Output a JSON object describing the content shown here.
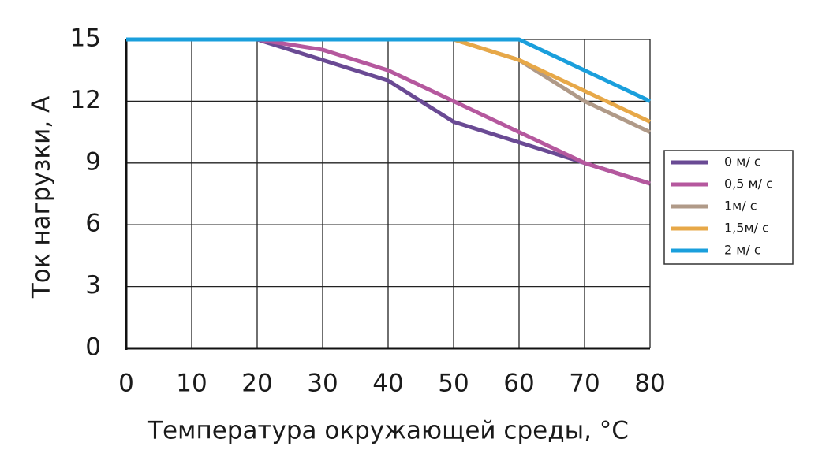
{
  "chart_data": {
    "type": "line",
    "x_label": "Температура окружающей среды, °С",
    "y_label": "Ток нагрузки, А",
    "x": [
      0,
      10,
      20,
      30,
      40,
      50,
      60,
      70,
      80
    ],
    "xlim": [
      0,
      80
    ],
    "xticks": [
      0,
      10,
      20,
      30,
      40,
      50,
      60,
      70,
      80
    ],
    "ylim": [
      0,
      15
    ],
    "yticks": [
      0,
      3,
      6,
      9,
      12,
      15
    ],
    "grid": true,
    "legend": "right",
    "series": [
      {
        "name": "0 м/ с",
        "color": "#6a4a94",
        "values": [
          15,
          15,
          15,
          14,
          13,
          11,
          10,
          9,
          8
        ]
      },
      {
        "name": "0,5 м/ с",
        "color": "#b5589e",
        "values": [
          15,
          15,
          15,
          14.5,
          13.5,
          12,
          10.5,
          9,
          8
        ]
      },
      {
        "name": "1м/ с",
        "color": "#b09a88",
        "values": [
          15,
          15,
          15,
          15,
          15,
          15,
          14,
          12,
          10.5
        ]
      },
      {
        "name": "1,5м/ с",
        "color": "#e7a848",
        "values": [
          15,
          15,
          15,
          15,
          15,
          15,
          14,
          12.5,
          11
        ]
      },
      {
        "name": "2 м/ с",
        "color": "#1a9fdc",
        "values": [
          15,
          15,
          15,
          15,
          15,
          15,
          15,
          13.5,
          12
        ]
      }
    ]
  }
}
